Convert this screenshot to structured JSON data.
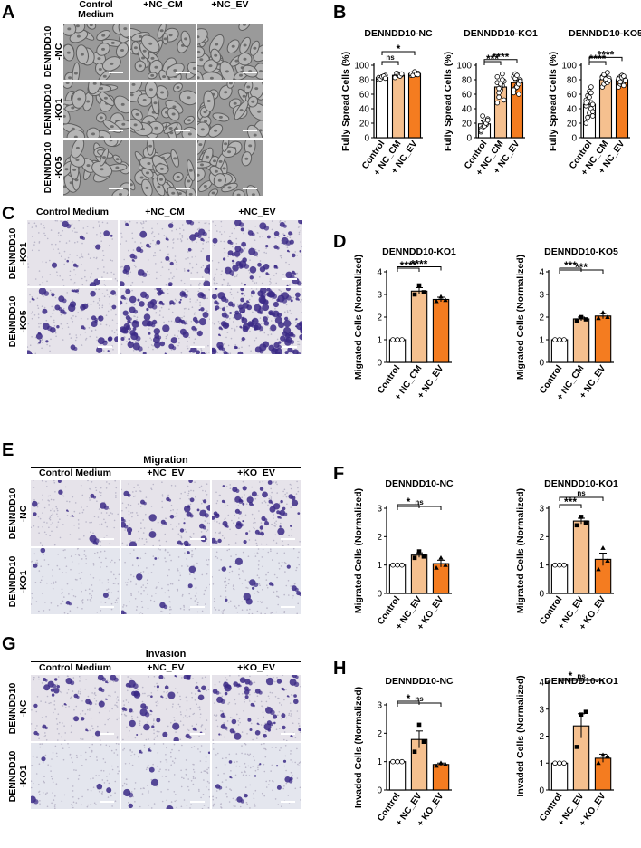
{
  "panels": {
    "A": {
      "letter": "A",
      "columns": [
        "Control\nMedium",
        "+NC_CM",
        "+NC_EV"
      ],
      "rows": [
        "DENNDD10\n-NC",
        "DENNDD10\n-KO1",
        "DENNDD10\n-KO5"
      ],
      "image_style": "phase"
    },
    "C": {
      "letter": "C",
      "columns": [
        "Control Medium",
        "+NC_CM",
        "+NC_EV"
      ],
      "rows": [
        "DENNDD10\n-KO1",
        "DENNDD10\n-KO5"
      ],
      "image_style": "stain"
    },
    "E": {
      "letter": "E",
      "header": "Migration",
      "columns": [
        "Control Medium",
        "+NC_EV",
        "+KO_EV"
      ],
      "rows": [
        "DENNDD10\n-NC",
        "DENNDD10\n-KO1"
      ],
      "image_style": "stain"
    },
    "G": {
      "letter": "G",
      "header": "Invasion",
      "columns": [
        "Control Medium",
        "+NC_EV",
        "+KO_EV"
      ],
      "rows": [
        "DENNDD10\n-NC",
        "DENNDD10\n-KO1"
      ],
      "image_style": "stain"
    },
    "B": {
      "letter": "B"
    },
    "D": {
      "letter": "D"
    },
    "F": {
      "letter": "F"
    },
    "H": {
      "letter": "H"
    }
  },
  "colors": {
    "control": "#ffffff",
    "cm": "#f5c08f",
    "ev": "#f47c20",
    "ko_ev": "#f47c20",
    "stain_dark": "#3b2a86",
    "phase_bg": "#9a9a9a"
  },
  "chart_data": [
    {
      "id": "B1",
      "type": "bar",
      "title": "DENNDD10-NC",
      "ylabel": "Fully Spread Cells (%)",
      "categories": [
        "Control",
        "+ NC_CM",
        "+ NC_EV"
      ],
      "values": [
        83,
        86,
        88
      ],
      "errors": [
        2,
        2,
        2
      ],
      "ylim": [
        0,
        100
      ],
      "yticks": [
        0,
        20,
        40,
        60,
        80,
        100
      ],
      "points": [
        [
          80,
          82,
          84,
          85,
          86,
          83,
          81,
          84,
          85,
          82
        ],
        [
          84,
          86,
          88,
          85,
          87,
          83,
          89,
          86,
          85,
          88
        ],
        [
          86,
          88,
          90,
          87,
          89,
          88,
          86,
          91,
          88,
          87
        ]
      ],
      "markers": [
        "circle",
        "circle",
        "circle"
      ],
      "sig": [
        {
          "from": 0,
          "to": 1,
          "label": "ns"
        },
        {
          "from": 0,
          "to": 2,
          "label": "*"
        }
      ]
    },
    {
      "id": "B2",
      "type": "bar",
      "title": "DENNDD10-KO1",
      "ylabel": "Fully Spread Cells (%)",
      "categories": [
        "Control",
        "+ NC_CM",
        "+ NC_EV"
      ],
      "values": [
        19,
        70,
        76
      ],
      "errors": [
        4,
        5,
        3
      ],
      "ylim": [
        0,
        100
      ],
      "yticks": [
        0,
        20,
        40,
        60,
        80,
        100
      ],
      "points": [
        [
          8,
          14,
          22,
          18,
          26,
          12,
          30,
          16,
          20,
          24,
          10
        ],
        [
          48,
          56,
          66,
          72,
          78,
          84,
          62,
          70,
          88,
          52,
          76,
          68,
          74,
          80
        ],
        [
          62,
          68,
          72,
          76,
          80,
          84,
          88,
          70,
          74,
          78,
          66,
          82,
          86,
          60
        ]
      ],
      "markers": [
        "circle",
        "circle",
        "circle"
      ],
      "sig": [
        {
          "from": 0,
          "to": 1,
          "label": "***"
        },
        {
          "from": 0,
          "to": 2,
          "label": "****"
        }
      ]
    },
    {
      "id": "B3",
      "type": "bar",
      "title": "DENNDD10-KO5",
      "ylabel": "Fully Spread Cells (%)",
      "categories": [
        "Control",
        "+ NC_CM",
        "+ NC_EV"
      ],
      "values": [
        46,
        80,
        80
      ],
      "errors": [
        5,
        2,
        2
      ],
      "ylim": [
        0,
        100
      ],
      "yticks": [
        0,
        20,
        40,
        60,
        80,
        100
      ],
      "points": [
        [
          20,
          28,
          34,
          40,
          46,
          52,
          58,
          64,
          70,
          36,
          44,
          50,
          56,
          62,
          30,
          48
        ],
        [
          70,
          74,
          78,
          80,
          82,
          84,
          86,
          88,
          76,
          79,
          83,
          87,
          81,
          90
        ],
        [
          70,
          74,
          76,
          78,
          80,
          82,
          84,
          86,
          72,
          79,
          81,
          77,
          83,
          85
        ]
      ],
      "markers": [
        "circle",
        "circle",
        "circle"
      ],
      "sig": [
        {
          "from": 0,
          "to": 1,
          "label": "****"
        },
        {
          "from": 0,
          "to": 2,
          "label": "****"
        }
      ]
    },
    {
      "id": "D1",
      "type": "bar",
      "title": "DENNDD10-KO1",
      "ylabel": "Migrated Cells (Normalized)",
      "categories": [
        "Control",
        "+ NC_CM",
        "+ NC_EV"
      ],
      "values": [
        1,
        3.15,
        2.78
      ],
      "errors": [
        0,
        0.15,
        0.1
      ],
      "ylim": [
        0,
        4
      ],
      "yticks": [
        0,
        1,
        2,
        3,
        4
      ],
      "points": [
        [
          1,
          1,
          1
        ],
        [
          3.0,
          3.4,
          3.1
        ],
        [
          2.7,
          2.9,
          2.75
        ]
      ],
      "markers": [
        "circle",
        "square",
        "triangle"
      ],
      "sig": [
        {
          "from": 0,
          "to": 1,
          "label": "****"
        },
        {
          "from": 0,
          "to": 2,
          "label": "****"
        }
      ]
    },
    {
      "id": "D2",
      "type": "bar",
      "title": "DENNDD10-KO5",
      "ylabel": "Migrated Cells (Normalized)",
      "categories": [
        "Control",
        "+ NC_CM",
        "+ NC_EV"
      ],
      "values": [
        1,
        1.92,
        2.05
      ],
      "errors": [
        0,
        0.08,
        0.12
      ],
      "ylim": [
        0,
        4
      ],
      "yticks": [
        0,
        1,
        2,
        3,
        4
      ],
      "points": [
        [
          1,
          1,
          1
        ],
        [
          1.85,
          2.0,
          1.9
        ],
        [
          1.95,
          2.2,
          2.0
        ]
      ],
      "markers": [
        "circle",
        "square",
        "triangle"
      ],
      "sig": [
        {
          "from": 0,
          "to": 1,
          "label": "***"
        },
        {
          "from": 0,
          "to": 2,
          "label": "***"
        }
      ]
    },
    {
      "id": "F1",
      "type": "bar",
      "title": "DENNDD10-NC",
      "ylabel": "Migrated Cells (Normalized)",
      "categories": [
        "Control",
        "+ NC_EV",
        "+ KO_EV"
      ],
      "values": [
        1,
        1.35,
        1.05
      ],
      "errors": [
        0,
        0.08,
        0.12
      ],
      "ylim": [
        0,
        3
      ],
      "yticks": [
        0,
        1,
        2,
        3
      ],
      "points": [
        [
          1,
          1,
          1
        ],
        [
          1.25,
          1.48,
          1.3
        ],
        [
          0.9,
          1.25,
          1.0
        ]
      ],
      "markers": [
        "circle",
        "square",
        "triangle"
      ],
      "sig": [
        {
          "from": 0,
          "to": 1,
          "label": "*"
        },
        {
          "from": 0,
          "to": 2,
          "label": "ns"
        }
      ]
    },
    {
      "id": "F2",
      "type": "bar",
      "title": "DENNDD10-KO1",
      "ylabel": "Migrated Cells (Normalized)",
      "categories": [
        "Control",
        "+ NC_EV",
        "+ KO_EV"
      ],
      "values": [
        1,
        2.55,
        1.2
      ],
      "errors": [
        0,
        0.1,
        0.22
      ],
      "ylim": [
        0,
        3
      ],
      "yticks": [
        0,
        1,
        2,
        3
      ],
      "points": [
        [
          1,
          1,
          1
        ],
        [
          2.4,
          2.7,
          2.5
        ],
        [
          0.85,
          1.6,
          1.15
        ]
      ],
      "markers": [
        "circle",
        "square",
        "triangle"
      ],
      "sig": [
        {
          "from": 0,
          "to": 1,
          "label": "***"
        },
        {
          "from": 0,
          "to": 2,
          "label": "ns"
        }
      ]
    },
    {
      "id": "H1",
      "type": "bar",
      "title": "DENNDD10-NC",
      "ylabel": "Invaded Cells (Normalized)",
      "categories": [
        "Control",
        "+ NC_EV",
        "+ KO_EV"
      ],
      "values": [
        1,
        1.78,
        0.9
      ],
      "errors": [
        0,
        0.3,
        0.05
      ],
      "ylim": [
        0,
        3
      ],
      "yticks": [
        0,
        1,
        2,
        3
      ],
      "points": [
        [
          1,
          1,
          1
        ],
        [
          1.35,
          2.3,
          1.7
        ],
        [
          0.85,
          0.95,
          0.9
        ]
      ],
      "markers": [
        "circle",
        "square",
        "triangle"
      ],
      "sig": [
        {
          "from": 0,
          "to": 1,
          "label": "*"
        },
        {
          "from": 0,
          "to": 2,
          "label": "ns"
        }
      ]
    },
    {
      "id": "H2",
      "type": "bar",
      "title": "DENNDD10-KO1",
      "ylabel": "Invaded Cells (Normalized)",
      "categories": [
        "Control",
        "+ NC_EV",
        "+ KO_EV"
      ],
      "values": [
        1,
        2.38,
        1.18
      ],
      "errors": [
        0,
        0.45,
        0.15
      ],
      "ylim": [
        0,
        4
      ],
      "yticks": [
        0,
        1,
        2,
        3,
        4
      ],
      "points": [
        [
          1,
          1,
          1
        ],
        [
          1.6,
          2.8,
          2.9
        ],
        [
          1.0,
          1.3,
          1.25
        ]
      ],
      "markers": [
        "circle",
        "square",
        "triangle"
      ],
      "sig": [
        {
          "from": 0,
          "to": 1,
          "label": "*"
        },
        {
          "from": 0,
          "to": 2,
          "label": "ns"
        }
      ]
    }
  ]
}
